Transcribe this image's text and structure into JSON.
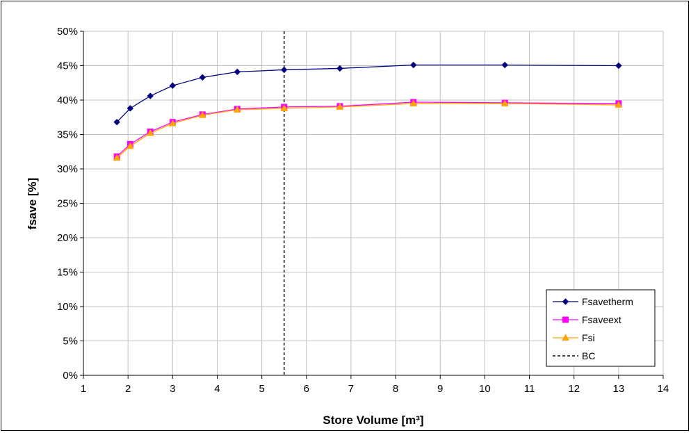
{
  "chart_data": {
    "type": "line",
    "title": "",
    "xlabel": "Store Volume [m³]",
    "ylabel": "fsave [%]",
    "xlim": [
      1,
      14
    ],
    "ylim": [
      0,
      50
    ],
    "x_ticks": [
      "1",
      "2",
      "3",
      "4",
      "5",
      "6",
      "7",
      "8",
      "9",
      "10",
      "11",
      "12",
      "13",
      "14"
    ],
    "y_ticks": [
      "0%",
      "5%",
      "10%",
      "15%",
      "20%",
      "25%",
      "30%",
      "35%",
      "40%",
      "45%",
      "50%"
    ],
    "grid": true,
    "legend_position": "bottom-right",
    "x": [
      1.75,
      2.05,
      2.5,
      3.0,
      3.67,
      4.45,
      5.5,
      6.75,
      8.4,
      10.45,
      13.0
    ],
    "series": [
      {
        "name": "Fsavetherm",
        "color": "#00007f",
        "marker": "diamond",
        "values": [
          36.8,
          38.8,
          40.6,
          42.1,
          43.3,
          44.1,
          44.4,
          44.6,
          45.1,
          45.1,
          45.0
        ]
      },
      {
        "name": "Fsaveext",
        "color": "#ff00ff",
        "marker": "square",
        "values": [
          31.8,
          33.6,
          35.4,
          36.8,
          37.9,
          38.7,
          39.0,
          39.1,
          39.7,
          39.6,
          39.5
        ]
      },
      {
        "name": "Fsi",
        "color": "#ffa500",
        "marker": "triangle",
        "values": [
          31.6,
          33.3,
          35.2,
          36.6,
          37.8,
          38.6,
          38.8,
          39.0,
          39.5,
          39.5,
          39.3
        ]
      }
    ],
    "reference_line": {
      "name": "BC",
      "x": 5.5,
      "color": "#000000",
      "style": "dashed"
    }
  }
}
